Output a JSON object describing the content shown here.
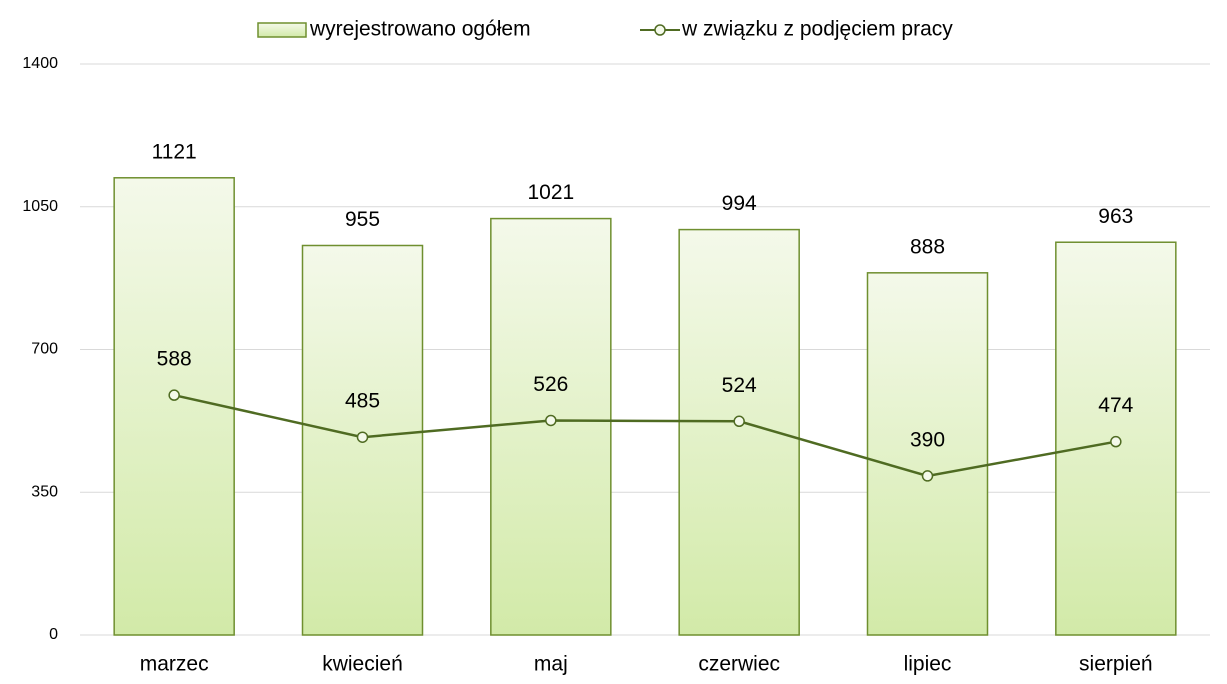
{
  "chart_data": {
    "type": "bar",
    "categories": [
      "marzec",
      "kwiecień",
      "maj",
      "czerwiec",
      "lipiec",
      "sierpień"
    ],
    "series": [
      {
        "name": "wyrejestrowano ogółem",
        "type": "bar",
        "color": "#6f8f2f",
        "values": [
          1121,
          955,
          1021,
          994,
          888,
          963
        ]
      },
      {
        "name": "w związku z podjęciem pracy",
        "type": "line",
        "color": "#4f6b22",
        "values": [
          588,
          485,
          526,
          524,
          390,
          474
        ]
      }
    ],
    "ylim": [
      0,
      1400
    ],
    "yticks": [
      0,
      350,
      700,
      1050,
      1400
    ],
    "grid": true,
    "legend": "top"
  }
}
